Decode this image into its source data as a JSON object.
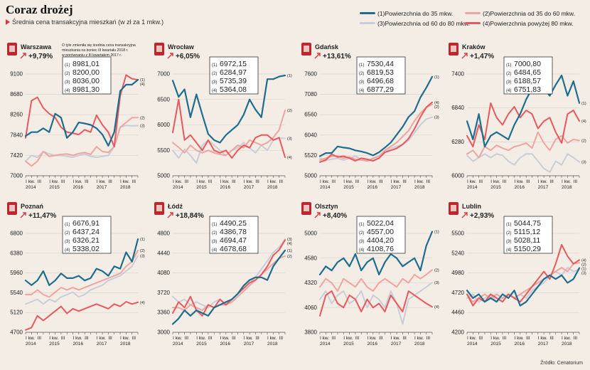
{
  "header": {
    "title": "Coraz drożej",
    "subtitle": "Średnia cena transakcyjna mieszkań (w zł za 1 mkw.)",
    "note": "O tyle zmieniła się średnia cena transakcyjna mieszkania na koniec III kwartału 2018 r. w porównaniu z III kwartałem 2017 r.",
    "source": "Źródło: Cenatorium"
  },
  "legend": [
    {
      "label": "Powierzchnia do 35 mkw.",
      "num": "(1)",
      "color": "#1e6d8f"
    },
    {
      "label": "Powierzchnia od 35 do 60 mkw.",
      "num": "(2)",
      "color": "#f0a4a0"
    },
    {
      "label": "Powierzchnia od 60 do 80 mkw.",
      "num": "(3)",
      "color": "#c9cdd8"
    },
    {
      "label": "Powierzchnia powyżej 80 mkw.",
      "num": "(4)",
      "color": "#e9585c"
    }
  ],
  "chart_data": [
    {
      "type": "line",
      "city": "Warszawa",
      "change": "+9,79%",
      "ylim": [
        7000,
        9100
      ],
      "yticks": [
        "9100",
        "8680",
        "8260",
        "7840",
        "7420",
        "7000"
      ],
      "xticks": [
        "I kw. 2014",
        "III",
        "I kw. 2015",
        "III",
        "I kw. 2016",
        "III",
        "I kw. 2017",
        "III",
        "I kw. 2018",
        "III"
      ],
      "values": [
        "8981,01",
        "8200,00",
        "8036,00",
        "8981,30"
      ],
      "series": [
        {
          "name": "(1)",
          "values": [
            7820,
            7900,
            7900,
            7980,
            7900,
            8280,
            8200,
            7780,
            7900,
            8100,
            8080,
            8050,
            7980,
            7850,
            7620,
            7900,
            8750,
            8880,
            8880,
            8981
          ]
        },
        {
          "name": "(2)",
          "values": [
            7300,
            7200,
            7300,
            7500,
            7400,
            7420,
            7440,
            7450,
            7420,
            7460,
            7480,
            7440,
            7600,
            7500,
            7480,
            7600,
            8000,
            8100,
            8200,
            8200
          ]
        },
        {
          "name": "(3)",
          "values": [
            7300,
            7420,
            7380,
            7500,
            7450,
            7420,
            7420,
            7400,
            7380,
            7420,
            7450,
            7400,
            7380,
            7400,
            7420,
            7600,
            8000,
            8040,
            8030,
            8036
          ]
        },
        {
          "name": "(4)",
          "values": [
            7780,
            8550,
            8620,
            8400,
            8280,
            8200,
            8000,
            7900,
            7880,
            7850,
            7950,
            7900,
            8250,
            8050,
            7900,
            7600,
            8650,
            9080,
            9000,
            8981
          ]
        }
      ]
    },
    {
      "type": "line",
      "city": "Wrocław",
      "change": "+6,05%",
      "ylim": [
        5000,
        7000
      ],
      "yticks": [
        "7000",
        "6500",
        "6000",
        "5500",
        "5000"
      ],
      "xticks": [
        "I kw. 2014",
        "III",
        "I kw. 2015",
        "III",
        "I kw. 2016",
        "III",
        "I kw. 2017",
        "III",
        "I kw. 2018",
        "III"
      ],
      "values": [
        "6972,15",
        "6284,97",
        "5735,39",
        "5364,08"
      ],
      "series": [
        {
          "name": "(1)",
          "values": [
            6870,
            6550,
            6700,
            6150,
            6600,
            6200,
            5820,
            5700,
            5650,
            5800,
            5900,
            6000,
            6200,
            6500,
            6300,
            6150,
            6900,
            6900,
            6950,
            6972
          ]
        },
        {
          "name": "(2)",
          "values": [
            5650,
            5560,
            5450,
            5600,
            5500,
            5450,
            5500,
            5450,
            5420,
            5400,
            5500,
            5600,
            5550,
            5700,
            5650,
            5600,
            5650,
            5750,
            5900,
            6285
          ]
        },
        {
          "name": "(3)",
          "values": [
            5500,
            5350,
            5520,
            5400,
            5250,
            5600,
            5700,
            5600,
            5500,
            5400,
            5500,
            5550,
            5650,
            5550,
            5450,
            5600,
            5500,
            5700,
            5740,
            5735
          ]
        },
        {
          "name": "(4)",
          "values": [
            5850,
            6500,
            5700,
            5800,
            5650,
            5500,
            5700,
            5500,
            5450,
            5500,
            5350,
            5500,
            5600,
            5550,
            5750,
            5800,
            5800,
            5700,
            5750,
            5364
          ]
        }
      ]
    },
    {
      "type": "line",
      "city": "Gdańsk",
      "change": "+13,61%",
      "ylim": [
        5000,
        7600
      ],
      "yticks": [
        "7600",
        "7080",
        "6560",
        "6040",
        "5520",
        "5000"
      ],
      "xticks": [
        "I kw. 2014",
        "III",
        "I kw. 2015",
        "III",
        "I kw. 2016",
        "III",
        "I kw. 2017",
        "III",
        "I kw. 2018",
        "III"
      ],
      "values": [
        "7530,44",
        "6819,53",
        "6496,68",
        "6877,29"
      ],
      "series": [
        {
          "name": "(1)",
          "values": [
            5500,
            5580,
            5580,
            5750,
            5720,
            5700,
            5650,
            5620,
            5580,
            5520,
            5600,
            5720,
            5850,
            6050,
            6250,
            6500,
            6650,
            7000,
            7250,
            7530
          ]
        },
        {
          "name": "(2)",
          "values": [
            5400,
            5450,
            5500,
            5500,
            5450,
            5480,
            5420,
            5400,
            5380,
            5450,
            5500,
            5650,
            5750,
            5850,
            6000,
            6150,
            6400,
            6600,
            6750,
            6820
          ]
        },
        {
          "name": "(3)",
          "values": [
            5450,
            5400,
            5420,
            5450,
            5400,
            5450,
            5500,
            5420,
            5380,
            5400,
            5450,
            5600,
            5700,
            5750,
            5800,
            5900,
            6100,
            6300,
            6450,
            6497
          ]
        },
        {
          "name": "(4)",
          "values": [
            5350,
            5400,
            5550,
            5480,
            5500,
            5450,
            5380,
            5450,
            5420,
            5380,
            5450,
            5600,
            5650,
            5700,
            5800,
            5950,
            6200,
            6500,
            6750,
            6877
          ]
        }
      ]
    },
    {
      "type": "line",
      "city": "Kraków",
      "change": "+1,47%",
      "ylim": [
        6000,
        7400
      ],
      "yticks": [
        "7400",
        "6840",
        "6280",
        "6000"
      ],
      "xticks": [
        "I kw. 2014",
        "III",
        "I kw. 2015",
        "III",
        "I kw. 2016",
        "III",
        "I kw. 2017",
        "III",
        "I kw. 2018",
        "III"
      ],
      "values": [
        "7000,80",
        "6484,65",
        "6188,57",
        "6751,83"
      ],
      "series": [
        {
          "name": "(1)",
          "values": [
            6750,
            6500,
            6850,
            6400,
            6550,
            6600,
            6550,
            6500,
            6700,
            6850,
            7050,
            7200,
            7300,
            7200,
            7100,
            7250,
            7380,
            7100,
            7300,
            7001
          ]
        },
        {
          "name": "(2)",
          "values": [
            6300,
            6350,
            6250,
            6400,
            6350,
            6420,
            6380,
            6350,
            6400,
            6420,
            6450,
            6380,
            6600,
            6450,
            6350,
            6500,
            6550,
            6450,
            6500,
            6485
          ]
        },
        {
          "name": "(3)",
          "values": [
            6280,
            6200,
            6250,
            6300,
            6250,
            6300,
            6280,
            6200,
            6150,
            6250,
            6300,
            6300,
            6200,
            6100,
            6050,
            6200,
            6150,
            6300,
            6250,
            6189
          ]
        },
        {
          "name": "(4)",
          "values": [
            6550,
            6400,
            6700,
            6500,
            7000,
            6800,
            6700,
            6850,
            6950,
            6800,
            6900,
            6850,
            6650,
            6750,
            6800,
            6600,
            6450,
            6850,
            6900,
            6752
          ]
        }
      ]
    },
    {
      "type": "line",
      "city": "Poznań",
      "change": "+11,47%",
      "ylim": [
        4700,
        6800
      ],
      "yticks": [
        "6800",
        "6380",
        "5960",
        "5540",
        "5120",
        "4700"
      ],
      "xticks": [
        "I kw. 2014",
        "III",
        "I kw. 2015",
        "III",
        "I kw. 2016",
        "III",
        "I kw. 2017",
        "III",
        "I kw. 2018",
        "III"
      ],
      "values": [
        "6676,91",
        "6437,24",
        "6326,21",
        "5338,02"
      ],
      "series": [
        {
          "name": "(1)",
          "values": [
            5800,
            5700,
            5800,
            6000,
            5700,
            5800,
            5950,
            5850,
            5850,
            5900,
            5800,
            5850,
            6050,
            6000,
            5900,
            6100,
            6050,
            6400,
            6200,
            6677
          ]
        },
        {
          "name": "(2)",
          "values": [
            5500,
            5500,
            5600,
            5500,
            5450,
            5550,
            5650,
            5600,
            5650,
            5600,
            5650,
            5700,
            5750,
            5800,
            5850,
            5900,
            5950,
            6100,
            6200,
            6437
          ]
        },
        {
          "name": "(3)",
          "values": [
            5300,
            5350,
            5400,
            5300,
            5400,
            5350,
            5450,
            5500,
            5550,
            5450,
            5500,
            5600,
            5650,
            5700,
            5800,
            5850,
            5900,
            6000,
            6100,
            6326
          ]
        },
        {
          "name": "(4)",
          "values": [
            4750,
            4800,
            5050,
            4950,
            5050,
            5150,
            5250,
            5100,
            5200,
            5150,
            5200,
            5250,
            5300,
            5250,
            5200,
            5300,
            5250,
            5350,
            5300,
            5338
          ]
        }
      ]
    },
    {
      "type": "line",
      "city": "Łódź",
      "change": "+18,84%",
      "ylim": [
        3000,
        4800
      ],
      "yticks": [
        "4800",
        "4440",
        "4080",
        "3720",
        "3360",
        "3000"
      ],
      "xticks": [
        "I kw. 2014",
        "III",
        "I kw. 2015",
        "III",
        "I kw. 2016",
        "III",
        "I kw. 2017",
        "III",
        "I kw. 2018",
        "III"
      ],
      "values": [
        "4490,25",
        "4386,78",
        "4694,47",
        "4678,68"
      ],
      "series": [
        {
          "name": "(1)",
          "values": [
            3150,
            3250,
            3400,
            3300,
            3400,
            3350,
            3300,
            3450,
            3500,
            3550,
            3600,
            3700,
            3850,
            3950,
            4000,
            4000,
            3950,
            4200,
            4350,
            4490
          ]
        },
        {
          "name": "(2)",
          "values": [
            3450,
            3450,
            3400,
            3500,
            3450,
            3400,
            3500,
            3450,
            3500,
            3500,
            3550,
            3650,
            3750,
            3850,
            3950,
            4050,
            4150,
            4250,
            4350,
            4387
          ]
        },
        {
          "name": "(3)",
          "values": [
            3650,
            3550,
            3600,
            3500,
            3550,
            3500,
            3450,
            3550,
            3600,
            3500,
            3600,
            3700,
            3800,
            3900,
            4000,
            4150,
            4300,
            4450,
            4550,
            4694
          ]
        },
        {
          "name": "(4)",
          "values": [
            3350,
            3550,
            3450,
            3650,
            3400,
            3300,
            3500,
            3450,
            3600,
            3500,
            3600,
            3700,
            3800,
            3900,
            3950,
            4050,
            4200,
            4400,
            4500,
            4679
          ]
        }
      ]
    },
    {
      "type": "line",
      "city": "Olsztyn",
      "change": "+8,40%",
      "ylim": [
        3800,
        5000
      ],
      "yticks": [
        "5000",
        "4580",
        "4320",
        "4060",
        "3800"
      ],
      "xticks": [
        "I kw. 2014",
        "III",
        "I kw. 2015",
        "III",
        "I kw. 2016",
        "III",
        "I kw. 2017",
        "III",
        "I kw. 2018",
        "III"
      ],
      "values": [
        "5022,04",
        "4557,00",
        "4404,20",
        "4108,76"
      ],
      "series": [
        {
          "name": "(1)",
          "values": [
            4500,
            4600,
            4550,
            4650,
            4700,
            4600,
            4750,
            4550,
            4650,
            4700,
            4500,
            4650,
            4750,
            4700,
            4600,
            4650,
            4700,
            4550,
            4850,
            5022
          ]
        },
        {
          "name": "(2)",
          "values": [
            4350,
            4450,
            4400,
            4300,
            4450,
            4400,
            4350,
            4450,
            4350,
            4300,
            4400,
            4450,
            4400,
            4350,
            4450,
            4400,
            4500,
            4450,
            4500,
            4557
          ]
        },
        {
          "name": "(3)",
          "values": [
            4200,
            4300,
            4150,
            4250,
            4300,
            4150,
            4200,
            4300,
            4100,
            4250,
            4200,
            4100,
            4300,
            4150,
            3900,
            4200,
            4250,
            4300,
            4350,
            4404
          ]
        },
        {
          "name": "(4)",
          "values": [
            4000,
            4250,
            4300,
            4150,
            4100,
            4250,
            4200,
            4050,
            4200,
            4100,
            4150,
            4050,
            4250,
            4150,
            4050,
            4300,
            4250,
            4200,
            4150,
            4109
          ]
        }
      ]
    },
    {
      "type": "line",
      "city": "Lublin",
      "change": "+2,93%",
      "ylim": [
        4200,
        5500
      ],
      "yticks": [
        "5500",
        "5240",
        "4980",
        "4720",
        "4460",
        "4200"
      ],
      "xticks": [
        "I kw. 2014",
        "III",
        "I kw. 2015",
        "III",
        "I kw. 2016",
        "III",
        "I kw. 2017",
        "III",
        "I kw. 2018",
        "III"
      ],
      "values": [
        "5044,75",
        "5115,12",
        "5028,11",
        "5150,29"
      ],
      "series": [
        {
          "name": "(1)",
          "values": [
            4750,
            4650,
            4700,
            4600,
            4650,
            4600,
            4700,
            4650,
            4750,
            4550,
            4600,
            4700,
            4800,
            4900,
            4950,
            4900,
            4950,
            4850,
            4900,
            5045
          ]
        },
        {
          "name": "(2)",
          "values": [
            4700,
            4600,
            4650,
            4700,
            4650,
            4700,
            4650,
            4700,
            4650,
            4700,
            4750,
            4800,
            4850,
            4900,
            4950,
            5000,
            5050,
            5000,
            5100,
            5115
          ]
        },
        {
          "name": "(3)",
          "values": [
            4650,
            4700,
            4600,
            4650,
            4700,
            4600,
            4650,
            4700,
            4650,
            4700,
            4650,
            4750,
            4800,
            4850,
            4950,
            5000,
            4950,
            5050,
            5000,
            5028
          ]
        },
        {
          "name": "(4)",
          "values": [
            4700,
            4550,
            4650,
            4600,
            4700,
            4650,
            4600,
            4700,
            4650,
            4600,
            4700,
            4800,
            4900,
            5000,
            4900,
            5100,
            5350,
            5200,
            5100,
            5150
          ]
        }
      ]
    }
  ]
}
